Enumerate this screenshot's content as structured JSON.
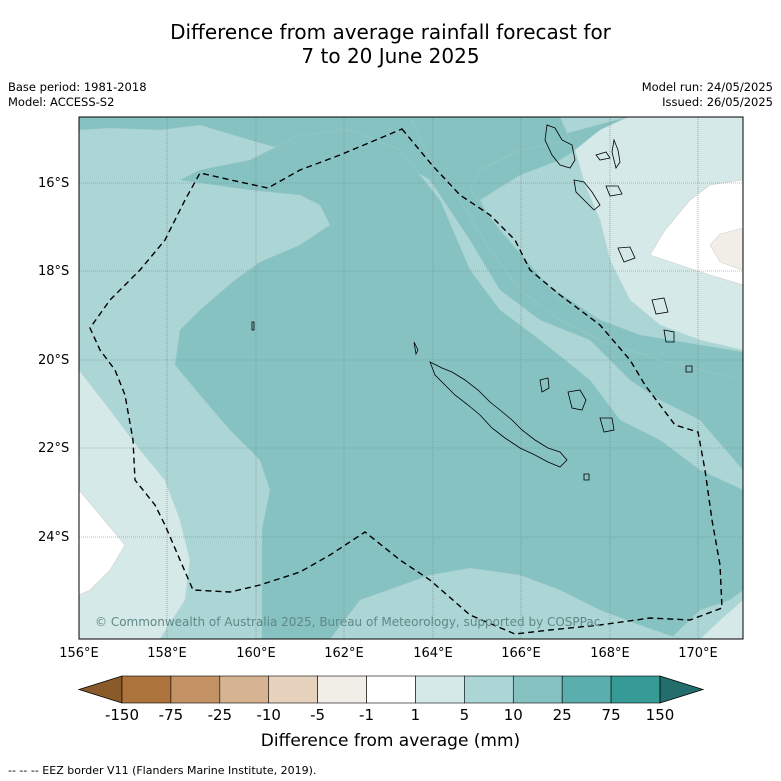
{
  "title_line1": "Difference from average rainfall forecast for",
  "title_line2": "7 to 20 June 2025",
  "meta": {
    "base_period": "Base period: 1981-2018",
    "model": "Model: ACCESS-S2",
    "model_run": "Model run: 24/05/2025",
    "issued": "Issued: 26/05/2025"
  },
  "lat_labels": [
    "16°S",
    "18°S",
    "20°S",
    "22°S",
    "24°S"
  ],
  "lon_labels": [
    "156°E",
    "158°E",
    "160°E",
    "162°E",
    "164°E",
    "166°E",
    "168°E",
    "170°E"
  ],
  "copyright": "© Commonwealth of Australia 2025, Bureau of Meteorology, supported by COSPPac",
  "colorbar": {
    "title": "Difference from average (mm)",
    "tick_labels": [
      "-150",
      "-75",
      "-25",
      "-10",
      "-5",
      "-1",
      "1",
      "5",
      "10",
      "25",
      "75",
      "150"
    ],
    "colors": [
      "#8a5a2b",
      "#ad733d",
      "#c39366",
      "#d6b391",
      "#e7d3bd",
      "#f1eee8",
      "#ffffff",
      "#d5e9e8",
      "#acd6d6",
      "#86c2c1",
      "#5aaeae",
      "#369a97",
      "#236e6d"
    ]
  },
  "footnote": "--  --  -- EEZ border V11 (Flanders Marine Institute, 2019).",
  "colors": {
    "grid": "#808080",
    "eez": "#000000"
  }
}
